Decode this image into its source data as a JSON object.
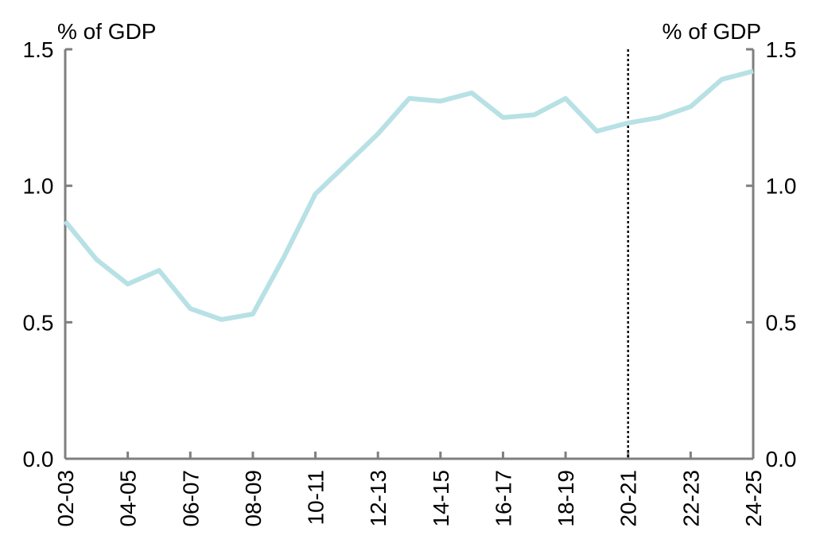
{
  "chart_data": {
    "type": "line",
    "y_unit_left": "% of GDP",
    "y_unit_right": "% of GDP",
    "ylim": [
      0,
      1.5
    ],
    "y_ticks": [
      "0.0",
      "0.5",
      "1.0",
      "1.5"
    ],
    "x_tick_labels": [
      "02-03",
      "04-05",
      "06-07",
      "08-09",
      "10-11",
      "12-13",
      "14-15",
      "16-17",
      "18-19",
      "20-21",
      "22-23",
      "24-25"
    ],
    "x": [
      "02-03",
      "03-04",
      "04-05",
      "05-06",
      "06-07",
      "07-08",
      "08-09",
      "09-10",
      "10-11",
      "11-12",
      "12-13",
      "13-14",
      "14-15",
      "15-16",
      "16-17",
      "17-18",
      "18-19",
      "19-20",
      "20-21",
      "21-22",
      "22-23",
      "23-24",
      "24-25"
    ],
    "series": [
      {
        "values": [
          0.87,
          0.73,
          0.64,
          0.69,
          0.55,
          0.51,
          0.53,
          0.74,
          0.97,
          1.08,
          1.19,
          1.32,
          1.31,
          1.34,
          1.25,
          1.26,
          1.32,
          1.2,
          1.23,
          1.25,
          1.29,
          1.39,
          1.42
        ],
        "color": "#b7e1e5"
      }
    ],
    "reference_line": {
      "x": "20-21",
      "style": "dotted",
      "color": "#000000"
    },
    "axis_color": "#7f7f7f",
    "grid": false,
    "legend": "none"
  }
}
